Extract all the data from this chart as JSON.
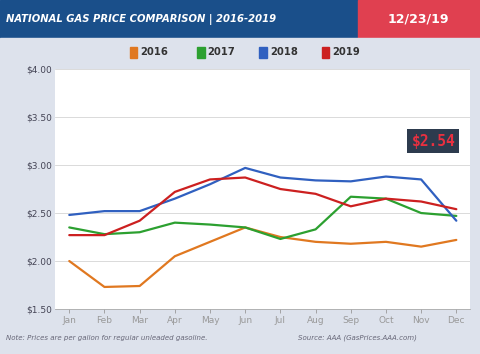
{
  "title_left": "NATIONAL GAS PRICE COMPARISON | 2016-2019",
  "title_right": "12/23/19",
  "title_bg": "#1a4f8a",
  "title_right_bg": "#e04050",
  "title_text_color": "#ffffff",
  "note": "Note: Prices are per gallon for regular unleaded gasoline.",
  "source": "Source: AAA (GasPrices.AAA.com)",
  "footer_bg": "#dde2ec",
  "plot_bg": "#ffffff",
  "outer_bg": "#dde2ec",
  "ylim": [
    1.5,
    4.0
  ],
  "yticks": [
    1.5,
    2.0,
    2.5,
    3.0,
    3.5,
    4.0
  ],
  "months": [
    "Jan",
    "Feb",
    "Mar",
    "Apr",
    "May",
    "Jun",
    "Jul",
    "Aug",
    "Sep",
    "Oct",
    "Nov",
    "Dec"
  ],
  "series": {
    "2016": {
      "color": "#e07820",
      "data": [
        2.0,
        1.73,
        1.74,
        2.05,
        2.2,
        2.35,
        2.25,
        2.2,
        2.18,
        2.2,
        2.15,
        2.22
      ]
    },
    "2017": {
      "color": "#2ca030",
      "data": [
        2.35,
        2.28,
        2.3,
        2.4,
        2.38,
        2.35,
        2.23,
        2.33,
        2.67,
        2.65,
        2.5,
        2.47
      ]
    },
    "2018": {
      "color": "#3060c0",
      "data": [
        2.48,
        2.52,
        2.52,
        2.65,
        2.8,
        2.97,
        2.87,
        2.84,
        2.83,
        2.88,
        2.85,
        2.42
      ]
    },
    "2019": {
      "color": "#cc2020",
      "data": [
        2.27,
        2.27,
        2.42,
        2.72,
        2.85,
        2.87,
        2.75,
        2.7,
        2.57,
        2.65,
        2.62,
        2.54
      ]
    }
  },
  "annotation_text": "$2.54",
  "annotation_bg": "#2d3b4e",
  "annotation_text_color": "#e83040",
  "legend_items": [
    "2016",
    "2017",
    "2018",
    "2019"
  ],
  "legend_colors": [
    "#e07820",
    "#2ca030",
    "#3060c0",
    "#cc2020"
  ]
}
